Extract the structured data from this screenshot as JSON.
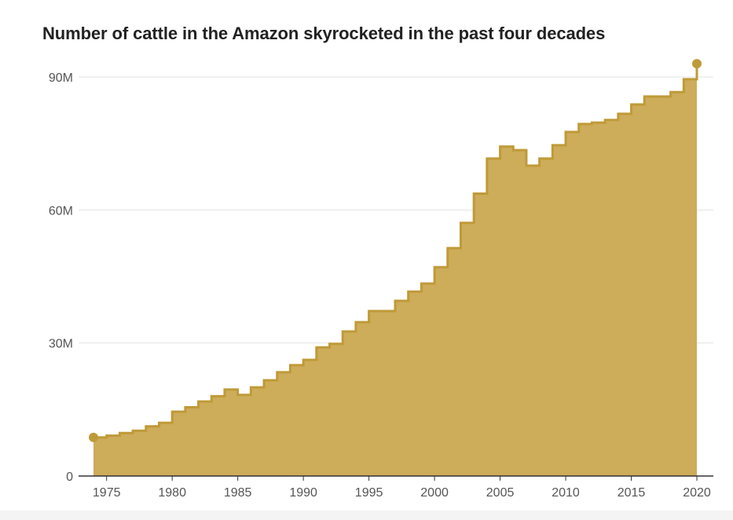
{
  "chart_data": {
    "type": "area",
    "step": true,
    "title": "Number of cattle in the Amazon skyrocketed in the past four decades",
    "xlabel": "",
    "ylabel": "",
    "xlim": [
      1974,
      2020
    ],
    "ylim": [
      0,
      95000000
    ],
    "y_ticks": [
      {
        "value": 0,
        "label": "0"
      },
      {
        "value": 30000000,
        "label": "30M"
      },
      {
        "value": 60000000,
        "label": "60M"
      },
      {
        "value": 90000000,
        "label": "90M"
      }
    ],
    "x_ticks": [
      {
        "value": 1975,
        "label": "1975"
      },
      {
        "value": 1980,
        "label": "1980"
      },
      {
        "value": 1985,
        "label": "1985"
      },
      {
        "value": 1990,
        "label": "1990"
      },
      {
        "value": 1995,
        "label": "1995"
      },
      {
        "value": 2000,
        "label": "2000"
      },
      {
        "value": 2005,
        "label": "2005"
      },
      {
        "value": 2010,
        "label": "2010"
      },
      {
        "value": 2015,
        "label": "2015"
      },
      {
        "value": 2020,
        "label": "2020"
      }
    ],
    "grid": true,
    "colors": {
      "fill": "#cdac5a",
      "line": "#bf9a38",
      "marker": "#bf9a38",
      "grid": "#e3e3e3",
      "axis": "#333333"
    },
    "series": [
      {
        "name": "Cattle",
        "x": [
          1974,
          1975,
          1976,
          1977,
          1978,
          1979,
          1980,
          1981,
          1982,
          1983,
          1984,
          1985,
          1986,
          1987,
          1988,
          1989,
          1990,
          1991,
          1992,
          1993,
          1994,
          1995,
          1996,
          1997,
          1998,
          1999,
          2000,
          2001,
          2002,
          2003,
          2004,
          2005,
          2006,
          2007,
          2008,
          2009,
          2010,
          2011,
          2012,
          2013,
          2014,
          2015,
          2016,
          2017,
          2018,
          2019,
          2020
        ],
        "values": [
          8700000,
          9100000,
          9700000,
          10200000,
          11200000,
          12000000,
          14500000,
          15500000,
          16800000,
          18000000,
          19500000,
          18300000,
          20000000,
          21600000,
          23400000,
          25000000,
          26200000,
          29000000,
          29800000,
          32600000,
          34700000,
          37200000,
          37200000,
          39500000,
          41600000,
          43400000,
          47100000,
          51400000,
          57100000,
          63700000,
          71600000,
          74300000,
          73500000,
          70000000,
          71600000,
          74600000,
          77600000,
          79400000,
          79700000,
          80300000,
          81700000,
          83800000,
          85600000,
          85600000,
          86600000,
          89500000,
          93000000
        ]
      }
    ]
  }
}
